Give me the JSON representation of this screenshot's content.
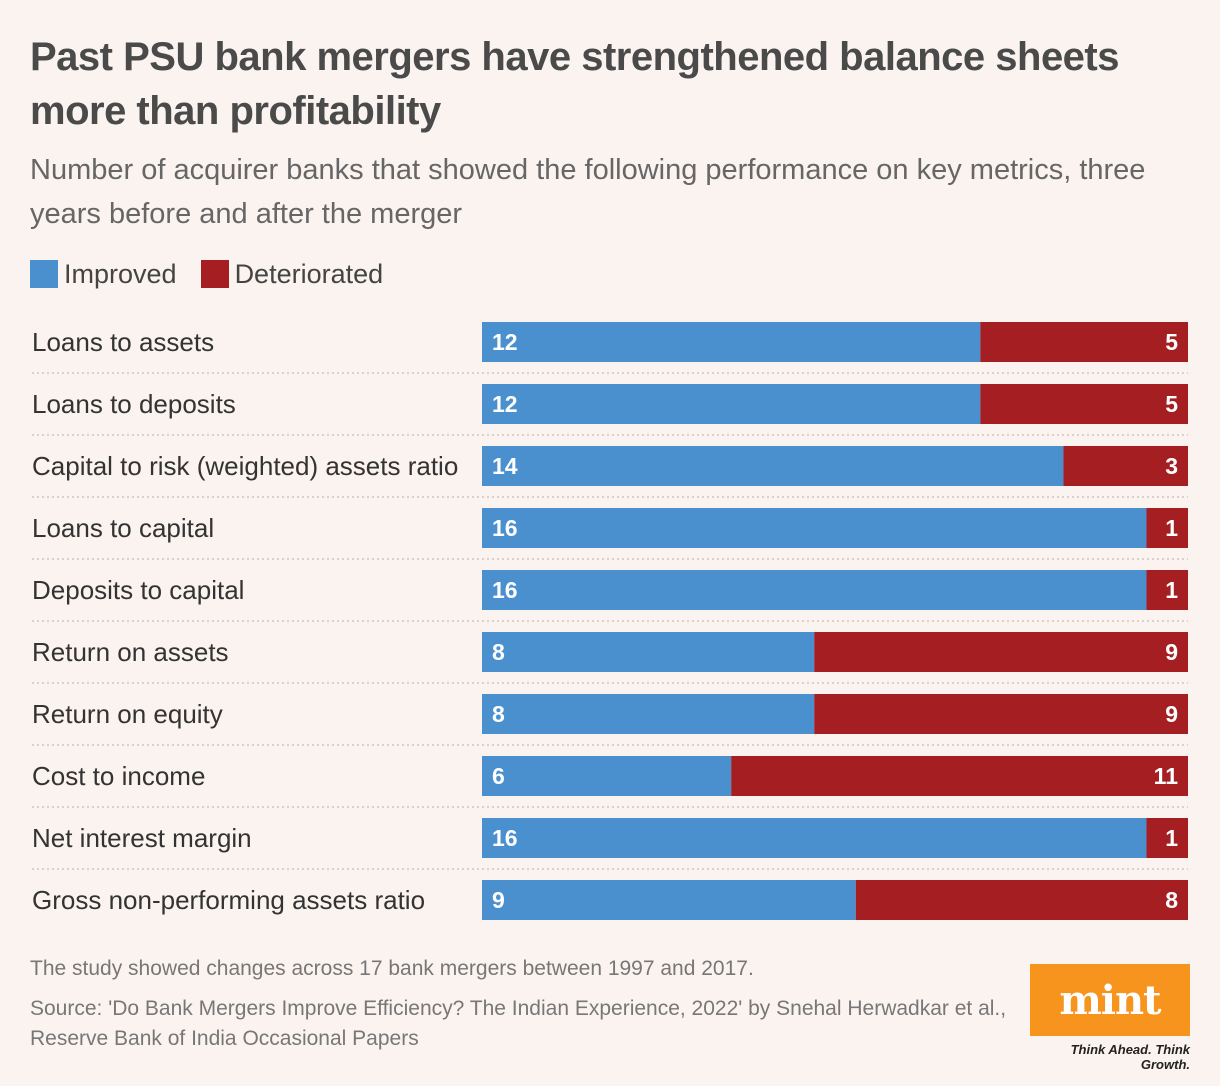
{
  "title": "Past PSU bank mergers have strengthened balance sheets more than profitability",
  "subtitle": "Number of acquirer banks that showed the following performance on key metrics, three years before and after the merger",
  "colors": {
    "improved": "#4a90cf",
    "deteriorated": "#a41e22",
    "background": "#fbf3ef",
    "logo": "#f7941d"
  },
  "chart_data": {
    "type": "bar",
    "orientation": "horizontal",
    "stacked": true,
    "title": "Past PSU bank mergers have strengthened balance sheets more than profitability",
    "subtitle": "Number of acquirer banks that showed the following performance on key metrics, three years before and after the merger",
    "legend_position": "top-left",
    "grid": false,
    "xlim": [
      0,
      17
    ],
    "categories": [
      "Loans to assets",
      "Loans to deposits",
      "Capital to risk (weighted) assets ratio",
      "Loans to capital",
      "Deposits to capital",
      "Return on assets",
      "Return on equity",
      "Cost to income",
      "Net interest margin",
      "Gross non-performing assets ratio"
    ],
    "series": [
      {
        "name": "Improved",
        "color": "#4a90cf",
        "values": [
          12,
          12,
          14,
          16,
          16,
          8,
          8,
          6,
          16,
          9
        ]
      },
      {
        "name": "Deteriorated",
        "color": "#a41e22",
        "values": [
          5,
          5,
          3,
          1,
          1,
          9,
          9,
          11,
          1,
          8
        ]
      }
    ]
  },
  "footer": {
    "note": "The study showed changes across 17 bank mergers between 1997 and 2017.",
    "source": "Source: 'Do Bank Mergers Improve Efficiency? The Indian Experience, 2022' by Snehal Herwadkar et al., Reserve Bank of India Occasional Papers",
    "logo": "mint",
    "tagline": "Think Ahead. Think Growth."
  }
}
